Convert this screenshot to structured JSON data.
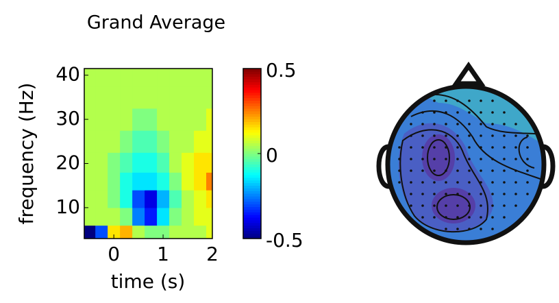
{
  "chart_data": {
    "type": "heatmap",
    "title": "Grand Average",
    "x_label": "time (s)",
    "y_label": "frequency (Hz)",
    "x": [
      -0.5,
      -0.25,
      0,
      0.25,
      0.5,
      0.75,
      1,
      1.25,
      1.5,
      1.75,
      2
    ],
    "y": [
      4,
      8,
      12,
      16,
      20,
      25,
      30,
      35,
      40
    ],
    "values": [
      [
        -0.5,
        -0.3,
        0.15,
        0.2,
        0.05,
        0,
        0,
        0.05,
        0.05,
        0.05,
        0.1
      ],
      [
        0.05,
        0.05,
        0.05,
        0,
        -0.25,
        -0.35,
        -0.15,
        0,
        0.05,
        0.1,
        0.1
      ],
      [
        0.05,
        0.05,
        0,
        -0.1,
        -0.3,
        -0.4,
        -0.2,
        -0.05,
        0.05,
        0.1,
        0.15
      ],
      [
        0.05,
        0.05,
        0,
        -0.1,
        -0.15,
        -0.15,
        -0.1,
        0,
        0.1,
        0.15,
        0.25
      ],
      [
        0.05,
        0.05,
        0,
        -0.05,
        -0.1,
        -0.1,
        -0.05,
        0.05,
        0.1,
        0.15,
        0.15
      ],
      [
        0.05,
        0.05,
        0.05,
        0,
        -0.05,
        -0.05,
        0,
        0.05,
        0.05,
        0.1,
        0.1
      ],
      [
        0.05,
        0.05,
        0.05,
        0.05,
        0,
        0,
        0.05,
        0.05,
        0.05,
        0.05,
        0.1
      ],
      [
        0.05,
        0.05,
        0.05,
        0.05,
        0.05,
        0.05,
        0.05,
        0.05,
        0.05,
        0.05,
        0.05
      ],
      [
        0.05,
        0.05,
        0.05,
        0.05,
        0.05,
        0.05,
        0.05,
        0.05,
        0.05,
        0.05,
        0.05
      ]
    ],
    "xlim": [
      -0.6,
      2
    ],
    "ylim": [
      3,
      41.5
    ],
    "xticks": [
      0,
      1,
      2
    ],
    "yticks": [
      10,
      20,
      30,
      40
    ],
    "clim": [
      -0.5,
      0.5
    ],
    "cticks": [
      -0.5,
      0,
      0.5
    ],
    "colormap": "jet"
  }
}
